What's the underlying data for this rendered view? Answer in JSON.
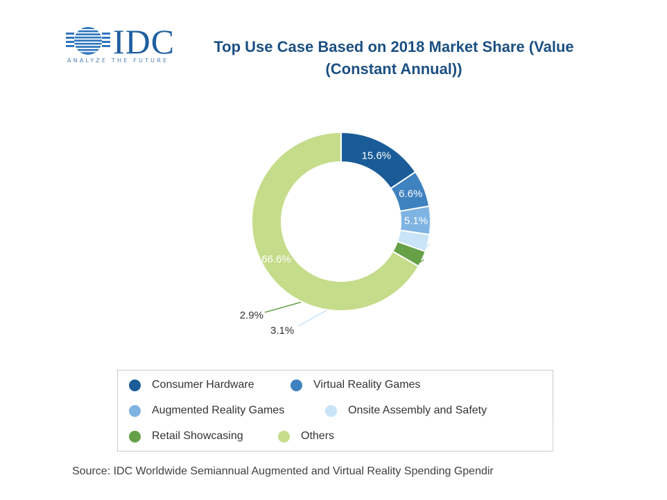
{
  "logo": {
    "wordmark": "IDC",
    "tagline": "ANALYZE THE FUTURE"
  },
  "colors": {
    "consumer_hardware": "#1a5c97",
    "virtual_reality_games": "#3f82c0",
    "augmented_reality_games": "#7eb3e2",
    "onsite_assembly": "#c9e3f7",
    "retail_showcasing": "#66a047",
    "others": "#c5dc8a"
  },
  "chart_data": {
    "type": "pie",
    "variant": "donut",
    "title": "Top Use Case Based on 2018 Market Share (Value (Constant Annual))",
    "title_lines": [
      "Top Use Case Based on 2018 Market Share (Value",
      "(Constant Annual))"
    ],
    "categories": [
      "Consumer Hardware",
      "Virtual Reality Games",
      "Augmented Reality Games",
      "Onsite Assembly and Safety",
      "Retail Showcasing",
      "Others"
    ],
    "values": [
      15.6,
      6.6,
      5.1,
      3.1,
      2.9,
      66.6
    ],
    "labels": [
      "15.6%",
      "6.6%",
      "5.1%",
      "3.1%",
      "2.9%",
      "66.6%"
    ],
    "legend_position": "bottom"
  },
  "source": "Source: IDC Worldwide Semiannual Augmented and Virtual Reality Spending Gpendir"
}
